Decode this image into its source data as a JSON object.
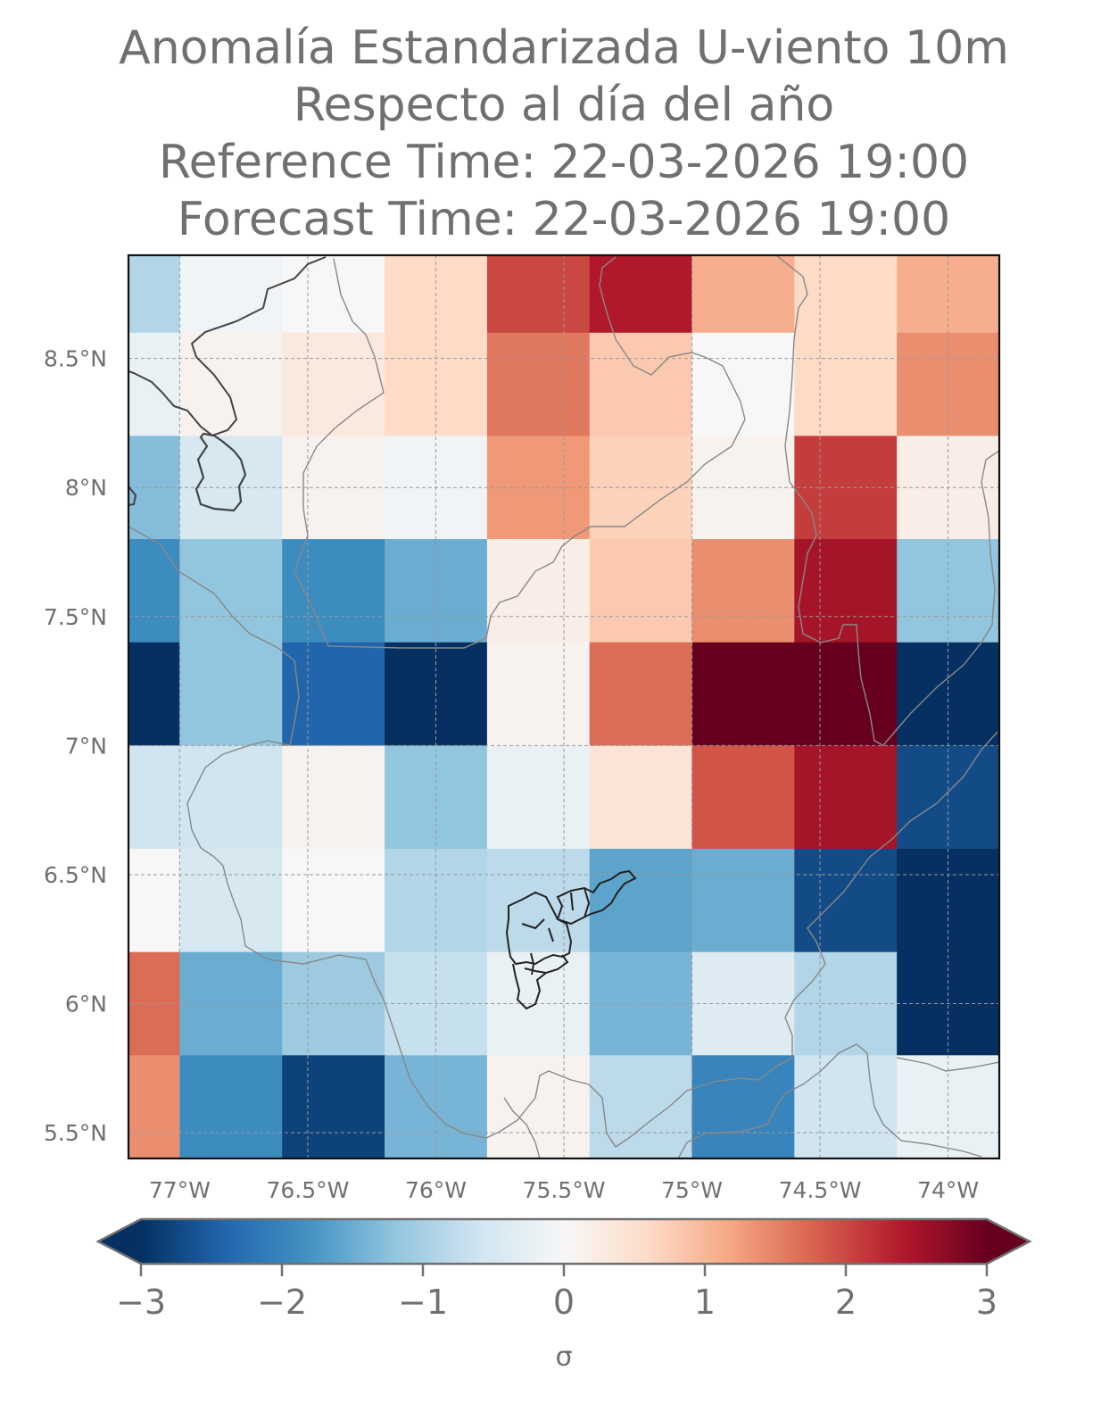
{
  "title_lines": [
    "Anomalía Estandarizada U-viento 10m",
    "Respecto al día del año",
    "Reference Time: 22-03-2026 19:00",
    "Forecast Time: 22-03-2026 19:00"
  ],
  "map": {
    "lon_range": [
      -77.2,
      -73.8
    ],
    "lat_range": [
      5.4,
      8.9
    ],
    "lon_ticks": [
      {
        "v": -77,
        "label": "77°W"
      },
      {
        "v": -76.5,
        "label": "76.5°W"
      },
      {
        "v": -76,
        "label": "76°W"
      },
      {
        "v": -75.5,
        "label": "75.5°W"
      },
      {
        "v": -75,
        "label": "75°W"
      },
      {
        "v": -74.5,
        "label": "74.5°W"
      },
      {
        "v": -74,
        "label": "74°W"
      }
    ],
    "lat_ticks": [
      {
        "v": 8.5,
        "label": "8.5°N"
      },
      {
        "v": 8,
        "label": "8°N"
      },
      {
        "v": 7.5,
        "label": "7.5°N"
      },
      {
        "v": 7,
        "label": "7°N"
      },
      {
        "v": 6.5,
        "label": "6.5°N"
      },
      {
        "v": 6,
        "label": "6°N"
      },
      {
        "v": 5.5,
        "label": "5.5°N"
      }
    ],
    "lon_edges": [
      -77.2,
      -77.0,
      -76.6,
      -76.2,
      -75.8,
      -75.4,
      -75.0,
      -74.6,
      -74.2,
      -73.8
    ],
    "lat_edges": [
      8.9,
      8.6,
      8.2,
      7.8,
      7.4,
      7.0,
      6.6,
      6.2,
      5.8,
      5.4
    ],
    "grid_sigma": [
      [
        -0.9,
        -0.1,
        0.0,
        0.6,
        2.0,
        2.4,
        1.1,
        0.6,
        1.1
      ],
      [
        -0.2,
        0.1,
        0.3,
        0.6,
        1.6,
        0.8,
        0.0,
        0.6,
        1.4
      ],
      [
        -1.3,
        -0.5,
        0.1,
        -0.1,
        1.3,
        0.7,
        0.1,
        2.1,
        0.2
      ],
      [
        -1.9,
        -1.2,
        -1.9,
        -1.5,
        0.2,
        0.8,
        1.4,
        2.5,
        -1.2
      ],
      [
        -3.0,
        -1.2,
        -2.4,
        -3.0,
        0.1,
        1.7,
        3.0,
        3.0,
        -3.0
      ],
      [
        -0.6,
        -0.6,
        0.1,
        -1.2,
        -0.2,
        0.4,
        1.9,
        2.5,
        -2.7
      ],
      [
        0.0,
        -0.5,
        0.0,
        -0.9,
        -0.8,
        -1.6,
        -1.5,
        -2.7,
        -3.0
      ],
      [
        1.7,
        -1.5,
        -1.1,
        -0.7,
        -0.2,
        -1.4,
        -0.4,
        -0.9,
        -3.0
      ],
      [
        1.4,
        -1.9,
        -2.8,
        -1.4,
        0.1,
        -0.8,
        -2.0,
        -0.6,
        -0.2
      ]
    ]
  },
  "colorbar": {
    "min": -3,
    "max": 3,
    "stops": [
      "#053061",
      "#2166ac",
      "#4393c3",
      "#92c5de",
      "#d1e5f0",
      "#f7f7f7",
      "#fddbc7",
      "#f4a582",
      "#d6604d",
      "#b2182b",
      "#67001f"
    ],
    "tick_labels": [
      {
        "v": -3,
        "label": "−3"
      },
      {
        "v": -2,
        "label": "−2"
      },
      {
        "v": -1,
        "label": "−1"
      },
      {
        "v": 0,
        "label": "0"
      },
      {
        "v": 1,
        "label": "1"
      },
      {
        "v": 2,
        "label": "2"
      },
      {
        "v": 3,
        "label": "3"
      }
    ],
    "label": "σ"
  }
}
